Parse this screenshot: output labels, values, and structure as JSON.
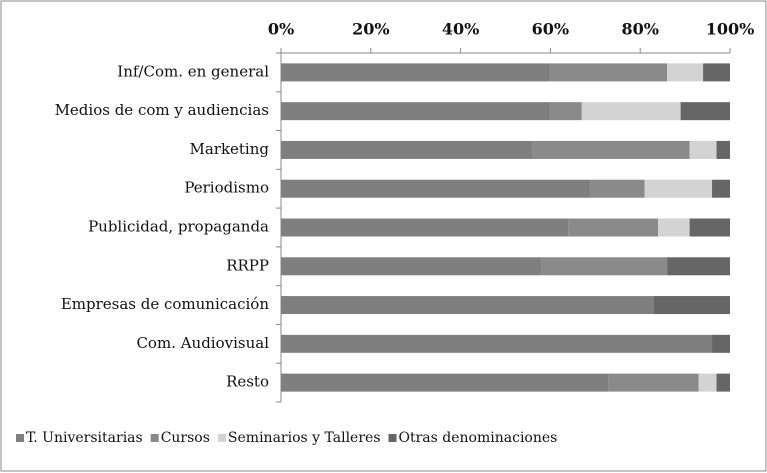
{
  "chart_data": {
    "type": "stacked-bar-horizontal",
    "categories": [
      "Inf/Com. en general",
      "Medios de com y audiencias",
      "Marketing",
      "Periodismo",
      "Publicidad, propaganda",
      "RRPP",
      "Empresas de comunicación",
      "Com. Audiovisual",
      "Resto"
    ],
    "series": [
      {
        "name": "T. Universitarias",
        "color": "#7f7f7f",
        "values": [
          60,
          60,
          56,
          69,
          64,
          58,
          83,
          96,
          73
        ]
      },
      {
        "name": "Cursos",
        "color": "#8a8a8a",
        "values": [
          26,
          7,
          35,
          12,
          20,
          28,
          0,
          0,
          20
        ]
      },
      {
        "name": "Seminarios y Talleres",
        "color": "#d3d3d3",
        "values": [
          8,
          22,
          6,
          15,
          7,
          0,
          0,
          0,
          4
        ]
      },
      {
        "name": "Otras denominaciones",
        "color": "#666666",
        "values": [
          6,
          11,
          3,
          4,
          9,
          14,
          17,
          4,
          3
        ]
      }
    ],
    "xlim": [
      0,
      100
    ],
    "xticks": [
      {
        "value": 0,
        "label": "0%"
      },
      {
        "value": 20,
        "label": "20%"
      },
      {
        "value": 40,
        "label": "40%"
      },
      {
        "value": 60,
        "label": "60%"
      },
      {
        "value": 80,
        "label": "80%"
      },
      {
        "value": 100,
        "label": "100%"
      }
    ],
    "legend": "bottom"
  }
}
